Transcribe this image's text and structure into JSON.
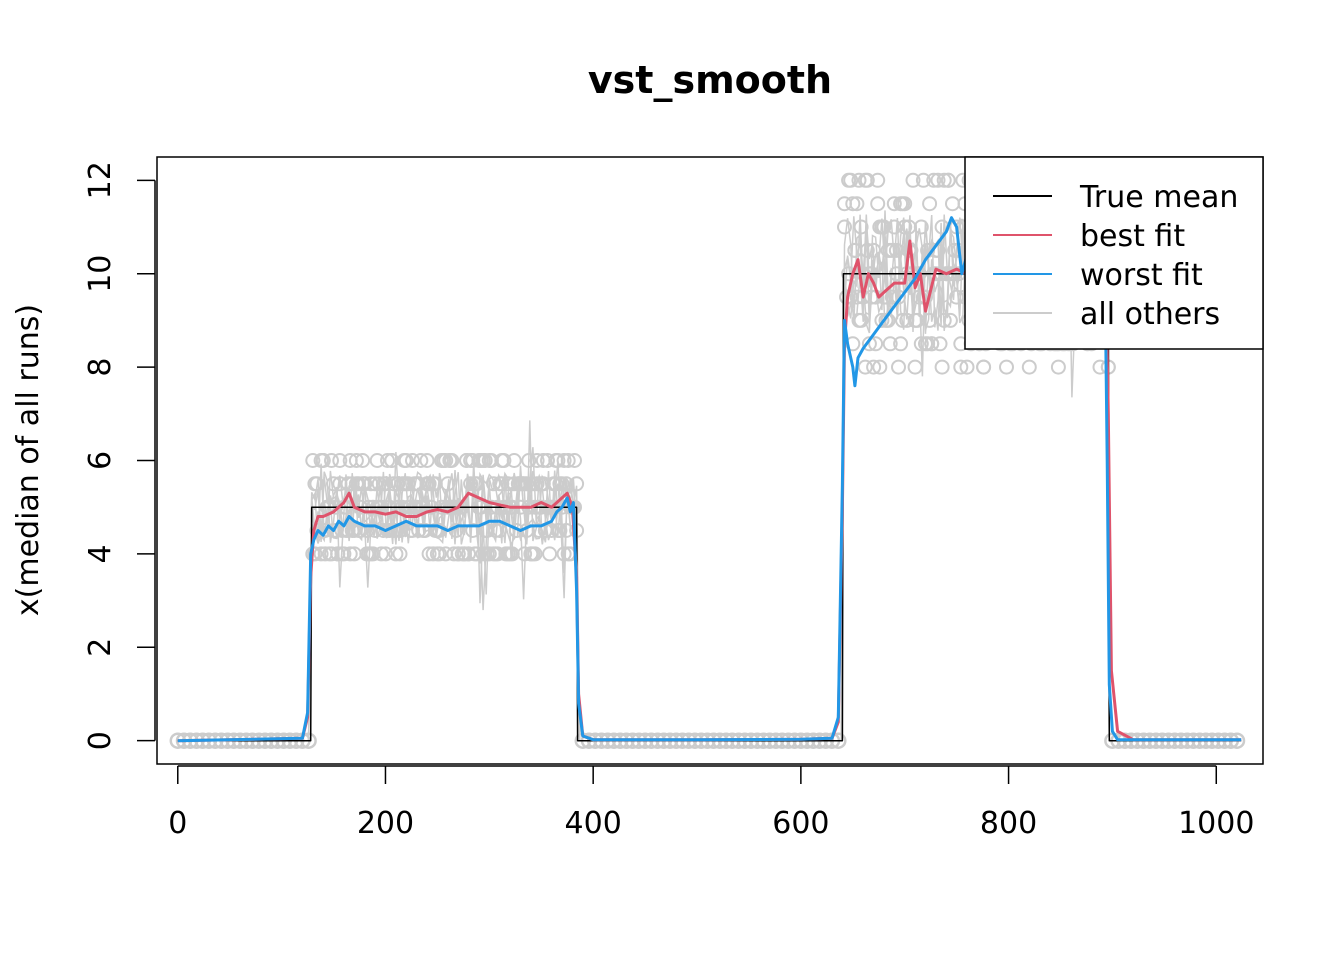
{
  "chart_data": {
    "type": "line",
    "title": "vst_smooth",
    "xlabel": "",
    "ylabel": "x(median of all runs)",
    "xlim": [
      -20,
      1045
    ],
    "ylim": [
      -0.5,
      12.5
    ],
    "x_ticks": [
      0,
      200,
      400,
      600,
      800,
      1000
    ],
    "y_ticks": [
      0,
      2,
      4,
      6,
      8,
      10,
      12
    ],
    "grid": false,
    "legend_position": "top-right",
    "series": [
      {
        "name": "True mean",
        "color": "#000000",
        "x": [
          0,
          128,
          129,
          384,
          385,
          640,
          641,
          896,
          897,
          1024
        ],
        "y": [
          0,
          0,
          5,
          5,
          0,
          0,
          10,
          10,
          0,
          0
        ]
      },
      {
        "name": "best fit",
        "color": "#DF536B",
        "x": [
          0,
          120,
          125,
          128,
          131,
          135,
          140,
          150,
          160,
          165,
          170,
          180,
          190,
          200,
          210,
          220,
          230,
          240,
          250,
          260,
          270,
          280,
          290,
          300,
          310,
          320,
          330,
          340,
          350,
          360,
          370,
          375,
          380,
          384,
          386,
          390,
          400,
          500,
          600,
          630,
          636,
          640,
          642,
          645,
          650,
          655,
          660,
          665,
          670,
          675,
          680,
          690,
          700,
          705,
          710,
          715,
          720,
          730,
          740,
          750,
          760,
          770,
          780,
          790,
          800,
          820,
          840,
          860,
          880,
          890,
          894,
          896,
          899,
          905,
          920,
          1024
        ],
        "y": [
          0,
          0.05,
          0.5,
          3.5,
          4.5,
          4.8,
          4.8,
          4.9,
          5.1,
          5.3,
          5.0,
          4.9,
          4.9,
          4.85,
          4.9,
          4.8,
          4.8,
          4.9,
          4.95,
          4.9,
          5.0,
          5.3,
          5.2,
          5.1,
          5.05,
          5.0,
          5.0,
          5.0,
          5.1,
          5.0,
          5.2,
          5.3,
          5.0,
          3.5,
          1.0,
          0.1,
          0.02,
          0.02,
          0.03,
          0.05,
          0.4,
          5.0,
          8.5,
          9.5,
          10.0,
          10.3,
          9.5,
          10.0,
          9.8,
          9.5,
          9.6,
          9.8,
          9.8,
          10.7,
          9.7,
          10.0,
          9.2,
          10.1,
          10.0,
          10.1,
          10.0,
          10.1,
          10.0,
          10.0,
          10.0,
          10.0,
          10.0,
          10.0,
          10.0,
          10.0,
          9.5,
          7.0,
          1.5,
          0.2,
          0.02,
          0.02
        ]
      },
      {
        "name": "worst fit",
        "color": "#2297E6",
        "x": [
          0,
          120,
          125,
          128,
          131,
          135,
          140,
          145,
          150,
          155,
          160,
          165,
          170,
          180,
          190,
          200,
          210,
          220,
          230,
          240,
          250,
          260,
          270,
          280,
          290,
          300,
          310,
          320,
          330,
          340,
          350,
          360,
          365,
          370,
          375,
          378,
          381,
          384,
          386,
          390,
          400,
          500,
          600,
          630,
          636,
          640,
          642,
          645,
          650,
          652,
          655,
          660,
          670,
          680,
          690,
          700,
          710,
          720,
          730,
          740,
          745,
          750,
          755,
          760,
          763,
          766,
          770,
          780,
          800,
          820,
          840,
          860,
          880,
          890,
          893,
          895,
          897,
          900,
          905,
          920,
          1024
        ],
        "y": [
          0,
          0.05,
          0.6,
          4.0,
          4.3,
          4.5,
          4.4,
          4.6,
          4.5,
          4.7,
          4.6,
          4.8,
          4.7,
          4.6,
          4.6,
          4.5,
          4.6,
          4.7,
          4.6,
          4.6,
          4.6,
          4.5,
          4.6,
          4.6,
          4.6,
          4.7,
          4.7,
          4.6,
          4.5,
          4.6,
          4.6,
          4.7,
          4.9,
          5.0,
          5.2,
          4.9,
          5.1,
          3.2,
          0.8,
          0.1,
          0.02,
          0.02,
          0.03,
          0.05,
          0.5,
          5.5,
          9.0,
          8.5,
          8.0,
          7.6,
          8.2,
          8.4,
          8.7,
          9.0,
          9.3,
          9.6,
          9.9,
          10.3,
          10.6,
          10.9,
          11.2,
          11.0,
          10.0,
          10.4,
          10.6,
          9.9,
          10.0,
          10.0,
          10.0,
          10.0,
          10.0,
          10.0,
          10.0,
          10.0,
          9.8,
          6.0,
          1.2,
          0.2,
          0.02,
          0.02,
          0.02
        ]
      },
      {
        "name": "all others",
        "color": "#CCCCCC",
        "x": [],
        "y": []
      }
    ]
  }
}
